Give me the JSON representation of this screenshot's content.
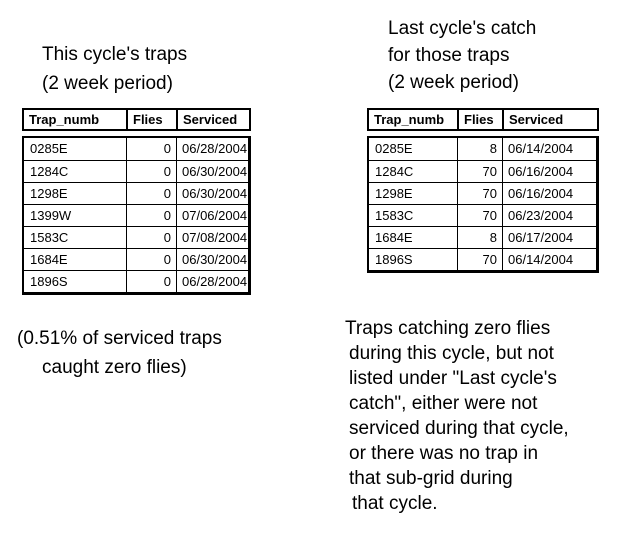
{
  "colors": {
    "background": "#ffffff",
    "text": "#000000",
    "table_border": "#000000"
  },
  "left": {
    "title_lines": [
      "This cycle's traps",
      "(2 week period)"
    ],
    "table": {
      "headers": {
        "trap": "Trap_numb",
        "flies": "Flies",
        "serviced": "Serviced"
      },
      "rows": [
        {
          "trap": "0285E",
          "flies": "0",
          "serviced": "06/28/2004"
        },
        {
          "trap": "1284C",
          "flies": "0",
          "serviced": "06/30/2004"
        },
        {
          "trap": "1298E",
          "flies": "0",
          "serviced": "06/30/2004"
        },
        {
          "trap": "1399W",
          "flies": "0",
          "serviced": "07/06/2004"
        },
        {
          "trap": "1583C",
          "flies": "0",
          "serviced": "07/08/2004"
        },
        {
          "trap": "1684E",
          "flies": "0",
          "serviced": "06/30/2004"
        },
        {
          "trap": "1896S",
          "flies": "0",
          "serviced": "06/28/2004"
        }
      ]
    },
    "note_lines": [
      "(0.51% of serviced traps",
      "caught zero flies)"
    ]
  },
  "right": {
    "title_lines": [
      "Last cycle's catch",
      "for those traps",
      "(2 week period)"
    ],
    "table": {
      "headers": {
        "trap": "Trap_numb",
        "flies": "Flies",
        "serviced": "Serviced"
      },
      "rows": [
        {
          "trap": "0285E",
          "flies": "8",
          "serviced": "06/14/2004"
        },
        {
          "trap": "1284C",
          "flies": "70",
          "serviced": "06/16/2004"
        },
        {
          "trap": "1298E",
          "flies": "70",
          "serviced": "06/16/2004"
        },
        {
          "trap": "1583C",
          "flies": "70",
          "serviced": "06/23/2004"
        },
        {
          "trap": "1684E",
          "flies": "8",
          "serviced": "06/17/2004"
        },
        {
          "trap": "1896S",
          "flies": "70",
          "serviced": "06/14/2004"
        }
      ]
    },
    "note_lines": [
      "Traps catching zero flies",
      "during this cycle, but not",
      "listed under \"Last cycle's",
      "catch\", either were not",
      "serviced during that cycle,",
      "or there was no trap in",
      "that sub-grid during",
      "that cycle."
    ]
  }
}
